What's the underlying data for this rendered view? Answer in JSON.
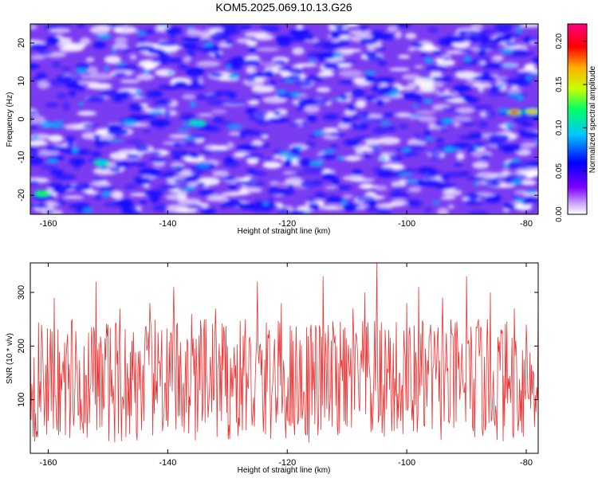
{
  "title": "KOM5.2025.069.10.13.G26",
  "chart_data": [
    {
      "type": "heatmap",
      "xlabel": "Height of straight line (km)",
      "ylabel": "Frequency (Hz)",
      "xlim": [
        -163,
        -78
      ],
      "ylim": [
        -25,
        25
      ],
      "xticks": [
        -160,
        -140,
        -120,
        -100,
        -80
      ],
      "yticks": [
        -20,
        -10,
        0,
        10,
        20
      ],
      "colorbar": {
        "label": "Normalized spectral amplitude",
        "range": [
          0,
          0.22
        ],
        "ticks": [
          "0.00",
          "0.05",
          "0.10",
          "0.15",
          "0.20"
        ]
      },
      "colormap": [
        "#ffffff",
        "#7f00ff",
        "#0000ff",
        "#00c8ff",
        "#00ff66",
        "#c8ff00",
        "#ffb000",
        "#ff0000",
        "#ff007f"
      ],
      "features": [
        {
          "x": -82,
          "y": 1.8,
          "amplitude": 0.22
        },
        {
          "x": -79,
          "y": 2.0,
          "amplitude": 0.18
        },
        {
          "x": -161,
          "y": -19.5,
          "amplitude": 0.12
        },
        {
          "x": -135,
          "y": -1,
          "amplitude": 0.1
        },
        {
          "x": -151,
          "y": -11.5,
          "amplitude": 0.1
        }
      ],
      "grid": false
    },
    {
      "type": "line",
      "xlabel": "Height of straight line (km)",
      "ylabel": "SNR (10 * v/v)",
      "xlim": [
        -163,
        -78
      ],
      "ylim": [
        0,
        355
      ],
      "xticks": [
        -160,
        -140,
        -120,
        -100,
        -80
      ],
      "yticks": [
        100,
        200,
        300
      ],
      "color": "#ee3030",
      "series": [
        {
          "x": [
            -163,
            -162,
            -161,
            -160,
            -159,
            -158,
            -157,
            -156,
            -155,
            -154,
            -153,
            -152,
            -151,
            -150,
            -149,
            -148,
            -147,
            -146,
            -145,
            -144,
            -143,
            -142,
            -141,
            -140,
            -139,
            -138,
            -137,
            -136,
            -135,
            -134,
            -133,
            -132,
            -131,
            -130,
            -129,
            -128,
            -127,
            -126,
            -125,
            -124,
            -123,
            -122,
            -121,
            -120,
            -119,
            -118,
            -117,
            -116,
            -115,
            -114,
            -113,
            -112,
            -111,
            -110,
            -109,
            -108,
            -107,
            -106,
            -105,
            -104,
            -103,
            -102,
            -101,
            -100,
            -99,
            -98,
            -97,
            -96,
            -95,
            -94,
            -93,
            -92,
            -91,
            -90,
            -89,
            -88,
            -87,
            -86,
            -85,
            -84,
            -83,
            -82,
            -81,
            -80,
            -79,
            -78
          ],
          "y": [
            260,
            30,
            210,
            60,
            290,
            40,
            180,
            250,
            70,
            200,
            120,
            320,
            50,
            240,
            90,
            270,
            30,
            210,
            160,
            60,
            280,
            100,
            230,
            50,
            310,
            70,
            190,
            260,
            40,
            220,
            120,
            270,
            60,
            200,
            150,
            50,
            250,
            90,
            320,
            40,
            230,
            120,
            280,
            60,
            210,
            150,
            40,
            240,
            110,
            330,
            60,
            220,
            160,
            50,
            270,
            90,
            300,
            40,
            355,
            80,
            230,
            140,
            60,
            280,
            100,
            310,
            50,
            240,
            160,
            290,
            60,
            210,
            120,
            330,
            50,
            250,
            180,
            300,
            70,
            230,
            140,
            270,
            60,
            240,
            110,
            290
          ]
        }
      ],
      "grid": false
    }
  ]
}
